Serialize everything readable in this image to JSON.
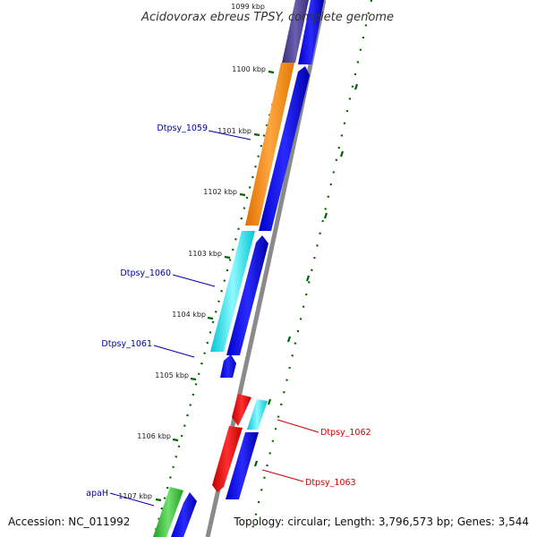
{
  "title": "Acidovorax ebreus TPSY, complete genome",
  "footer": {
    "accession": "Accession: NC_011992",
    "stats": "Topology: circular; Length: 3,796,573 bp; Genes: 3,544"
  },
  "ticks": [
    "1099 kbp",
    "1100 kbp",
    "1101 kbp",
    "1102 kbp",
    "1103 kbp",
    "1104 kbp",
    "1105 kbp",
    "1106 kbp",
    "1107 kbp"
  ],
  "gene_labels": [
    {
      "text": "Dtpsy_1059",
      "color": "#0000aa"
    },
    {
      "text": "Dtpsy_1060",
      "color": "#0000aa"
    },
    {
      "text": "Dtpsy_1061",
      "color": "#0000aa"
    },
    {
      "text": "Dtpsy_1062",
      "color": "#cc0000"
    },
    {
      "text": "Dtpsy_1063",
      "color": "#cc0000"
    },
    {
      "text": "apaH",
      "color": "#0000aa"
    }
  ],
  "colors": {
    "backbone": "#8a8a8a",
    "cds": "#0000ee",
    "orange": "#ff8c00",
    "cyan": "#00e5ee",
    "red": "#ee0000",
    "green": "#2ecc40",
    "slate": "#483d8b",
    "tick_mark": "#006400"
  }
}
